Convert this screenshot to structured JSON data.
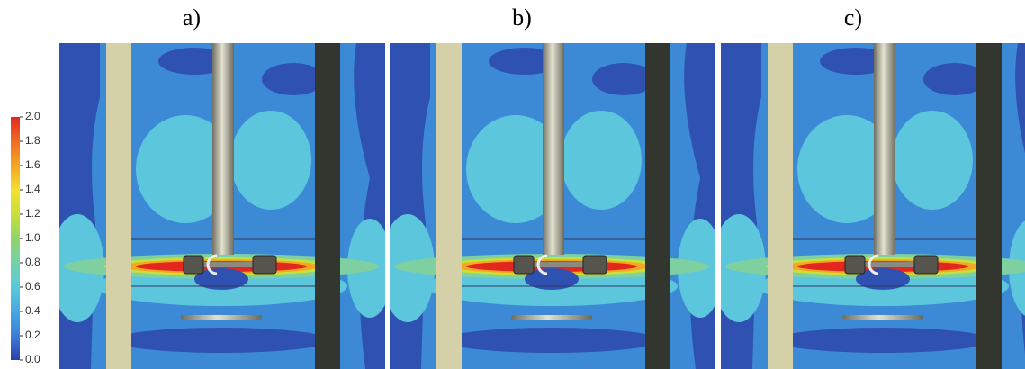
{
  "panels": [
    {
      "label": "a)"
    },
    {
      "label": "b)"
    },
    {
      "label": "c)"
    }
  ],
  "colorbar": {
    "ticks": [
      {
        "value": 0,
        "label": "0.0"
      },
      {
        "value": 0.2,
        "label": "0.2"
      },
      {
        "value": 0.4,
        "label": "0.4"
      },
      {
        "value": 0.6,
        "label": "0.6"
      },
      {
        "value": 0.8,
        "label": "0.8"
      },
      {
        "value": 1,
        "label": "1.0"
      },
      {
        "value": 1.2,
        "label": "1.2"
      },
      {
        "value": 1.4,
        "label": "1.4"
      },
      {
        "value": 1.6,
        "label": "1.6"
      },
      {
        "value": 1.8,
        "label": "1.8"
      },
      {
        "value": 2,
        "label": "2.0"
      }
    ],
    "colors": [
      "#2b3fa8",
      "#3b7fd6",
      "#45a9e0",
      "#5cc8dc",
      "#74d2a8",
      "#8fd66a",
      "#c8e03a",
      "#f2e030",
      "#f5a623",
      "#f06a25",
      "#e2281e"
    ]
  }
}
